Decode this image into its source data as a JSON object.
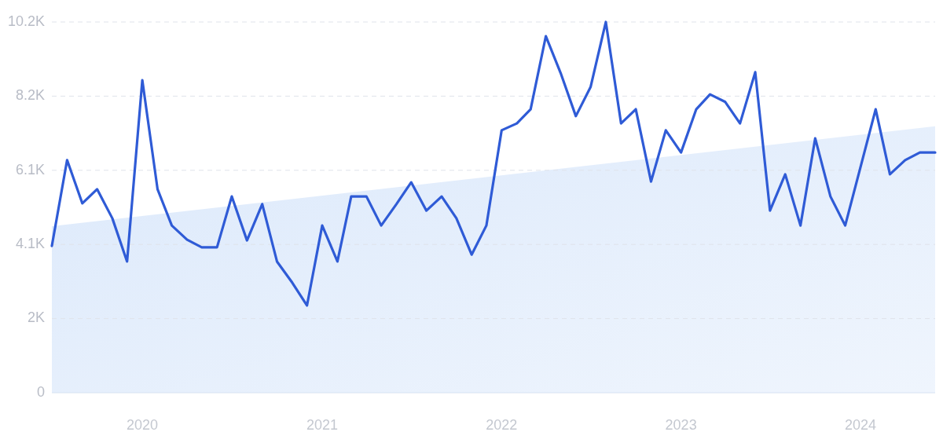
{
  "chart_data": {
    "type": "line",
    "x": [
      "2019-07",
      "2019-08",
      "2019-09",
      "2019-10",
      "2019-11",
      "2019-12",
      "2020-01",
      "2020-02",
      "2020-03",
      "2020-04",
      "2020-05",
      "2020-06",
      "2020-07",
      "2020-08",
      "2020-09",
      "2020-10",
      "2020-11",
      "2020-12",
      "2021-01",
      "2021-02",
      "2021-03",
      "2021-04",
      "2021-05",
      "2021-06",
      "2021-07",
      "2021-08",
      "2021-09",
      "2021-10",
      "2021-11",
      "2021-12",
      "2022-01",
      "2022-02",
      "2022-03",
      "2022-04",
      "2022-05",
      "2022-06",
      "2022-07",
      "2022-08",
      "2022-09",
      "2022-10",
      "2022-11",
      "2022-12",
      "2023-01",
      "2023-02",
      "2023-03",
      "2023-04",
      "2023-05",
      "2023-06",
      "2023-07",
      "2023-08",
      "2023-09",
      "2023-10",
      "2023-11",
      "2023-12",
      "2024-01",
      "2024-02",
      "2024-03",
      "2024-04",
      "2024-05",
      "2024-06"
    ],
    "series": [
      {
        "type": "area",
        "color": "#dce9fb",
        "x": [
          "2019-07",
          "2024-06"
        ],
        "values": [
          4580,
          7330
        ]
      },
      {
        "color": "#2f5bd6",
        "values": [
          4040,
          6400,
          5210,
          5600,
          4800,
          3610,
          8600,
          5600,
          4600,
          4210,
          4000,
          4000,
          5400,
          4190,
          5190,
          3610,
          3030,
          2400,
          4600,
          3610,
          5400,
          5400,
          4600,
          5190,
          5790,
          5010,
          5400,
          4800,
          3800,
          4600,
          7220,
          7410,
          7800,
          9810,
          8800,
          7610,
          8410,
          10200,
          7410,
          7800,
          5810,
          7220,
          6610,
          7800,
          8210,
          8000,
          7410,
          8820,
          5010,
          6010,
          4600,
          7000,
          5400,
          4600,
          6200,
          7800,
          6010,
          6400,
          6610,
          6610
        ]
      }
    ],
    "xlim": [
      "2019-07",
      "2024-06"
    ],
    "xticks": [
      {
        "value": "2020-01",
        "label": "2020"
      },
      {
        "value": "2021-01",
        "label": "2021"
      },
      {
        "value": "2022-01",
        "label": "2022"
      },
      {
        "value": "2023-01",
        "label": "2023"
      },
      {
        "value": "2024-01",
        "label": "2024"
      }
    ],
    "ylim": [
      0,
      10200
    ],
    "yticks": [
      0,
      {
        "value": 2040,
        "label": "2K"
      },
      {
        "value": 4080,
        "label": "4.1K"
      },
      {
        "value": 6120,
        "label": "6.1K"
      },
      {
        "value": 8160,
        "label": "8.2K"
      },
      {
        "value": 10200,
        "label": "10.2K"
      }
    ],
    "grid": "y",
    "marker": "none",
    "line_style": "solid"
  }
}
